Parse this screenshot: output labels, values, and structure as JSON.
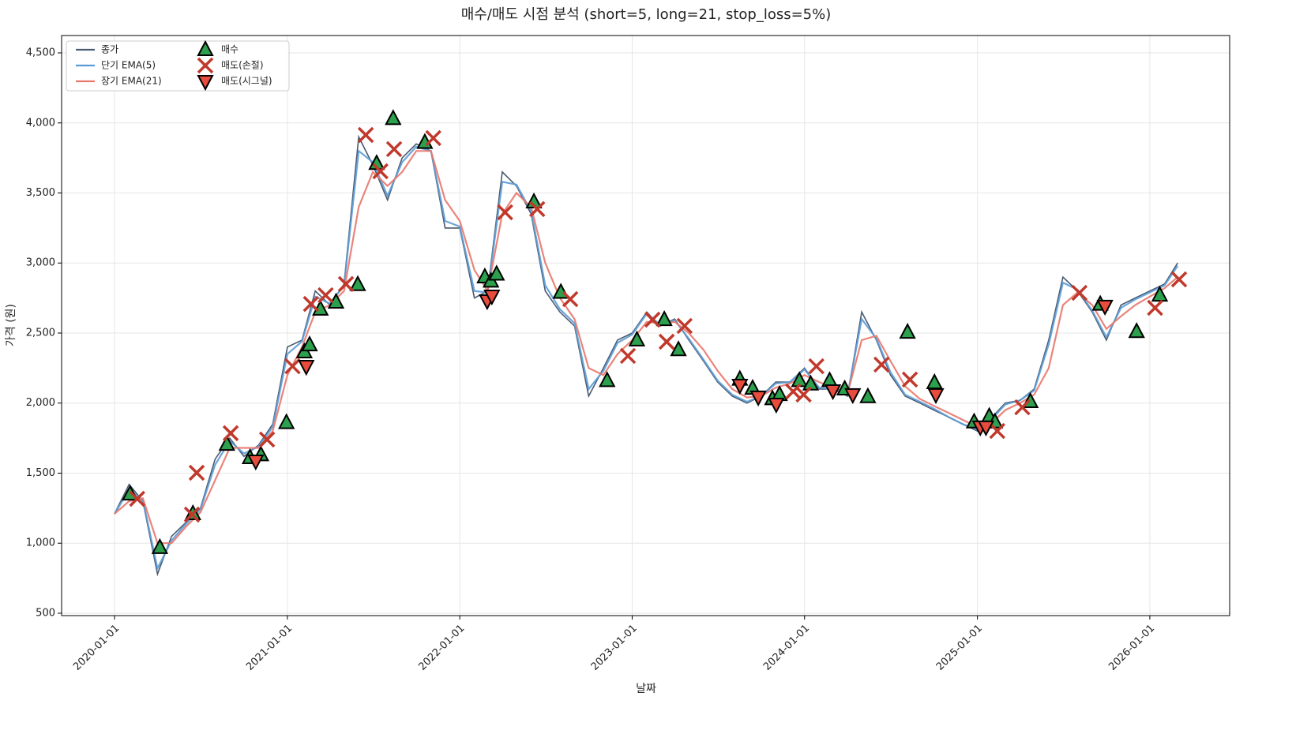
{
  "chart_data": {
    "type": "line",
    "title": "매수/매도 시점 분석 (short=5, long=21, stop_loss=5%)",
    "x_label": "날짜",
    "y_label": "가격 (원)",
    "xlim": [
      "2019-09-11",
      "2026-06-19"
    ],
    "xticks": [
      "2020-01-01",
      "2021-01-01",
      "2022-01-01",
      "2023-01-01",
      "2024-01-01",
      "2025-01-01",
      "2026-01-01"
    ],
    "ylim": [
      483,
      4624
    ],
    "yticks": [
      {
        "value": 500,
        "label": "500"
      },
      {
        "value": 1000,
        "label": "1,000"
      },
      {
        "value": 1500,
        "label": "1,500"
      },
      {
        "value": 2000,
        "label": "2,000"
      },
      {
        "value": 2500,
        "label": "2,500"
      },
      {
        "value": 3000,
        "label": "3,000"
      },
      {
        "value": 3500,
        "label": "3,500"
      },
      {
        "value": 4000,
        "label": "4,000"
      },
      {
        "value": 4500,
        "label": "4,500"
      }
    ],
    "grid": true,
    "legend": "upper left",
    "x": [
      "2020-01-01",
      "2020-02-01",
      "2020-03-01",
      "2020-04-01",
      "2020-05-01",
      "2020-06-01",
      "2020-07-01",
      "2020-08-01",
      "2020-09-01",
      "2020-10-01",
      "2020-11-01",
      "2020-12-01",
      "2021-01-01",
      "2021-02-01",
      "2021-03-01",
      "2021-04-01",
      "2021-05-01",
      "2021-06-01",
      "2021-07-01",
      "2021-08-01",
      "2021-09-01",
      "2021-10-01",
      "2021-11-01",
      "2021-12-01",
      "2022-01-01",
      "2022-02-01",
      "2022-03-01",
      "2022-04-01",
      "2022-05-01",
      "2022-06-01",
      "2022-07-01",
      "2022-08-01",
      "2022-09-01",
      "2022-10-01",
      "2022-11-01",
      "2022-12-01",
      "2023-01-01",
      "2023-02-01",
      "2023-03-01",
      "2023-04-01",
      "2023-05-01",
      "2023-06-01",
      "2023-07-01",
      "2023-08-01",
      "2023-09-01",
      "2023-10-01",
      "2023-11-01",
      "2023-12-01",
      "2024-01-01",
      "2024-02-01",
      "2024-03-01",
      "2024-04-01",
      "2024-05-01",
      "2024-06-01",
      "2024-07-01",
      "2024-08-01",
      "2024-09-01",
      "2024-10-01",
      "2024-11-01",
      "2024-12-01",
      "2025-01-01",
      "2025-02-01",
      "2025-03-01",
      "2025-04-01",
      "2025-05-01",
      "2025-06-01",
      "2025-07-01",
      "2025-08-01",
      "2025-09-01",
      "2025-10-01",
      "2025-11-01",
      "2025-12-01",
      "2026-01-01",
      "2026-02-01",
      "2026-03-01"
    ],
    "series": [
      {
        "name": "종가",
        "color": "#4a5a70",
        "marker": "line",
        "values": [
          1210,
          1420,
          1300,
          780,
          1050,
          1150,
          1250,
          1600,
          1750,
          1620,
          1700,
          1850,
          2400,
          2450,
          2800,
          2700,
          2850,
          3900,
          3700,
          3450,
          3750,
          3850,
          3800,
          3250,
          3250,
          2750,
          2800,
          3650,
          3550,
          3350,
          2800,
          2650,
          2550,
          2050,
          2250,
          2450,
          2500,
          2650,
          2550,
          2600,
          2450,
          2300,
          2150,
          2050,
          2000,
          2050,
          2150,
          2150,
          2250,
          2100,
          2100,
          2050,
          2650,
          2450,
          2200,
          2050,
          2000,
          1950,
          1900,
          1850,
          1800,
          1900,
          2000,
          2020,
          2100,
          2450,
          2900,
          2800,
          2650,
          2450,
          2700,
          2750,
          2800,
          2850,
          3000
        ]
      },
      {
        "name": "단기 EMA(5)",
        "color": "#5b9bd5",
        "marker": "line",
        "values": [
          1210,
          1380,
          1310,
          820,
          1020,
          1140,
          1240,
          1560,
          1730,
          1640,
          1690,
          1830,
          2350,
          2440,
          2760,
          2710,
          2840,
          3800,
          3720,
          3480,
          3720,
          3830,
          3800,
          3300,
          3260,
          2800,
          2790,
          3580,
          3560,
          3370,
          2840,
          2670,
          2570,
          2100,
          2230,
          2430,
          2490,
          2640,
          2560,
          2590,
          2460,
          2310,
          2160,
          2060,
          2010,
          2050,
          2140,
          2150,
          2240,
          2110,
          2100,
          2060,
          2600,
          2460,
          2220,
          2060,
          2010,
          1960,
          1900,
          1850,
          1810,
          1890,
          1990,
          2020,
          2090,
          2420,
          2860,
          2810,
          2660,
          2470,
          2680,
          2740,
          2790,
          2840,
          2980
        ]
      },
      {
        "name": "장기 EMA(21)",
        "color": "#e8776b",
        "marker": "line",
        "values": [
          1210,
          1300,
          1320,
          1000,
          1000,
          1120,
          1220,
          1450,
          1680,
          1680,
          1680,
          1800,
          2200,
          2400,
          2650,
          2700,
          2800,
          3400,
          3650,
          3550,
          3650,
          3800,
          3800,
          3450,
          3300,
          2950,
          2800,
          3350,
          3500,
          3400,
          3000,
          2750,
          2600,
          2250,
          2200,
          2350,
          2450,
          2580,
          2570,
          2580,
          2500,
          2380,
          2230,
          2100,
          2040,
          2050,
          2110,
          2140,
          2200,
          2150,
          2110,
          2070,
          2450,
          2480,
          2300,
          2120,
          2030,
          1980,
          1930,
          1880,
          1830,
          1860,
          1950,
          2000,
          2060,
          2250,
          2700,
          2790,
          2700,
          2530,
          2620,
          2700,
          2760,
          2820,
          2900
        ]
      },
      {
        "name": "매수",
        "color": "#2ca04c",
        "marker": "triangle-up",
        "x": [
          "2020-02-03",
          "2020-04-06",
          "2020-06-15",
          "2020-08-26",
          "2020-10-14",
          "2020-11-06",
          "2020-12-30",
          "2021-02-06",
          "2021-02-17",
          "2021-03-12",
          "2021-04-14",
          "2021-05-30",
          "2021-07-09",
          "2021-08-13",
          "2021-10-19",
          "2022-02-23",
          "2022-03-08",
          "2022-03-20",
          "2022-06-07",
          "2022-08-03",
          "2022-11-09",
          "2023-01-11",
          "2023-03-10",
          "2023-04-09",
          "2023-08-17",
          "2023-09-13",
          "2023-10-25",
          "2023-11-09",
          "2023-12-21",
          "2024-01-14",
          "2024-02-23",
          "2024-03-26",
          "2024-05-14",
          "2024-08-06",
          "2024-10-02",
          "2024-12-25",
          "2025-01-26",
          "2025-02-07",
          "2025-04-23",
          "2025-09-18",
          "2025-12-04",
          "2026-01-22"
        ],
        "values": [
          1350,
          968,
          1210,
          1705,
          1610,
          1630,
          1860,
          2365,
          2415,
          2670,
          2720,
          2845,
          3710,
          4030,
          3860,
          2900,
          2870,
          2920,
          3435,
          2790,
          2160,
          2450,
          2595,
          2380,
          2170,
          2105,
          2030,
          2060,
          2160,
          2135,
          2160,
          2100,
          2045,
          2505,
          2145,
          1865,
          1905,
          1865,
          2010,
          2705,
          2510,
          2770
        ]
      },
      {
        "name": "매도(손절)",
        "color": "#c0392b",
        "marker": "x",
        "x": [
          "2020-02-18",
          "2020-06-13",
          "2020-06-23",
          "2020-09-03",
          "2020-11-19",
          "2021-01-12",
          "2021-02-20",
          "2021-03-23",
          "2021-05-05",
          "2021-06-16",
          "2021-07-17",
          "2021-08-15",
          "2021-11-06",
          "2022-04-07",
          "2022-06-14",
          "2022-08-23",
          "2022-12-23",
          "2023-02-13",
          "2023-03-15",
          "2023-04-22",
          "2023-12-08",
          "2023-12-30",
          "2024-01-26",
          "2024-06-12",
          "2024-08-11",
          "2025-02-12",
          "2025-04-06",
          "2025-08-05",
          "2026-01-12",
          "2026-03-04"
        ],
        "values": [
          1317,
          1204,
          1503,
          1785,
          1740,
          2263,
          2708,
          2770,
          2850,
          3914,
          3655,
          3813,
          3892,
          3362,
          3385,
          2742,
          2337,
          2596,
          2438,
          2551,
          2083,
          2061,
          2263,
          2275,
          2168,
          1801,
          1970,
          2787,
          2680,
          2883
        ]
      },
      {
        "name": "매도(시그널)",
        "color": "#e74c3c",
        "marker": "triangle-down",
        "x": [
          "2020-10-26",
          "2021-02-10",
          "2022-02-28",
          "2022-03-10",
          "2023-08-17",
          "2023-09-25",
          "2023-11-02",
          "2024-03-01",
          "2024-04-12",
          "2024-10-05",
          "2025-01-07",
          "2025-01-19",
          "2025-09-28"
        ],
        "values": [
          1587,
          2263,
          2731,
          2765,
          2128,
          2044,
          1993,
          2089,
          2061,
          2061,
          1830,
          1830,
          2692
        ]
      }
    ]
  }
}
